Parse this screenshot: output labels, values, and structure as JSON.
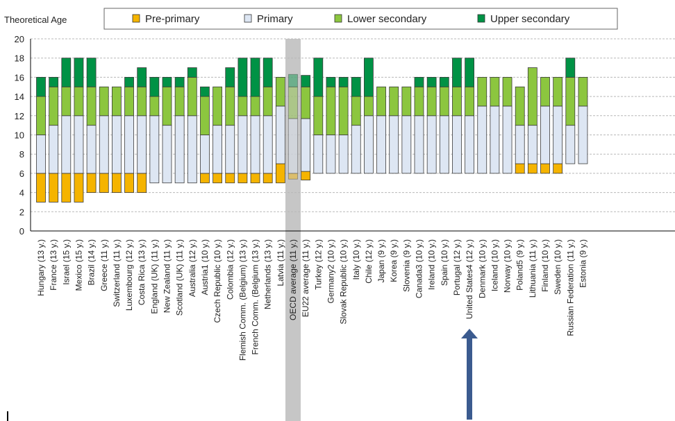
{
  "chart_data": {
    "type": "bar",
    "stacked": true,
    "ylabel": "Theoretical Age",
    "ylim": [
      0,
      20
    ],
    "yticks": [
      0,
      2,
      4,
      6,
      8,
      10,
      12,
      14,
      16,
      18,
      20
    ],
    "grid": true,
    "legend_position": "top",
    "highlight_category": "OECD average (11 y.)",
    "arrow_category": "Slovenia (9 y.)",
    "legend": [
      {
        "name": "Pre-primary",
        "color": "#f5b400"
      },
      {
        "name": "Primary",
        "color": "#dde6f3"
      },
      {
        "name": "Lower secondary",
        "color": "#8cc63f"
      },
      {
        "name": "Upper secondary",
        "color": "#009245"
      }
    ],
    "categories": [
      "Hungary (13 y.)",
      "France (13 y.)",
      "Israel (15 y.)",
      "Mexico (15 y.)",
      "Brazil (14 y.)",
      "Greece (11 y.)",
      "Switzerland (11 y.)",
      "Luxembourg (12 y.)",
      "Costa Rica (13 y.)",
      "England (UK) (11 y.)",
      "New Zealand (11 y.)",
      "Scotland (UK) (11 y.)",
      "Australia (12 y.)",
      "Austria1 (10 y.)",
      "Czech Republic (10 y.)",
      "Colombia (12 y.)",
      "Flemish Comm. (Belgium) (13 y.)",
      "French Comm. (Belgium (13 y.)",
      "Netherlands (13 y.)",
      "Latvia (11 y.)",
      "OECD average (11 y.)",
      "EU22 average (11 y.)",
      "Turkey (12 y.)",
      "Germany2 (10 y.)",
      "Slovak Republic (10 y.)",
      "Italy (10 y.)",
      "Chile (12 y.)",
      "Japan (9 y.)",
      "Korea (9 y.)",
      "Slovenia (9 y.)",
      "Canada3 (10 y.)",
      "Ireland (10 y.)",
      "Spain (10 y.)",
      "Portugal (12 y.)",
      "United States4 (12 y.)",
      "Denmark (10 y.)",
      "Iceland (10 y.)",
      "Norway (10 y.)",
      "Poland5 (9 y.)",
      "Lithuania (11 y.)",
      "Finland (10 y.)",
      "Sweden (10 y.)",
      "Russian Federation (11 y.)",
      "Estonia (9 y.)"
    ],
    "series": [
      {
        "name": "Pre-primary",
        "ranges": [
          [
            3,
            6
          ],
          [
            3,
            6
          ],
          [
            3,
            6
          ],
          [
            3,
            6
          ],
          [
            4,
            6
          ],
          [
            4,
            6
          ],
          [
            4,
            6
          ],
          [
            4,
            6
          ],
          [
            4,
            6
          ],
          null,
          null,
          null,
          null,
          [
            5,
            6
          ],
          [
            5,
            6
          ],
          [
            5,
            6
          ],
          [
            5,
            6
          ],
          [
            5,
            6
          ],
          [
            5,
            6
          ],
          [
            5,
            7
          ],
          [
            5.4,
            6
          ],
          [
            5.3,
            6.2
          ],
          null,
          null,
          null,
          null,
          null,
          null,
          null,
          null,
          null,
          null,
          null,
          null,
          null,
          null,
          null,
          null,
          [
            6,
            7
          ],
          [
            6,
            7
          ],
          [
            6,
            7
          ],
          [
            6,
            7
          ],
          null,
          null
        ]
      },
      {
        "name": "Primary",
        "ranges": [
          [
            6,
            10
          ],
          [
            6,
            11
          ],
          [
            6,
            12
          ],
          [
            6,
            12
          ],
          [
            6,
            11
          ],
          [
            6,
            12
          ],
          [
            6,
            12
          ],
          [
            6,
            12
          ],
          [
            6,
            12
          ],
          [
            5,
            12
          ],
          [
            5,
            11
          ],
          [
            5,
            12
          ],
          [
            5,
            12
          ],
          [
            6,
            10
          ],
          [
            6,
            11
          ],
          [
            6,
            11
          ],
          [
            6,
            12
          ],
          [
            6,
            12
          ],
          [
            6,
            12
          ],
          [
            7,
            13
          ],
          [
            6,
            11.7
          ],
          [
            6.2,
            11.7
          ],
          [
            6,
            10
          ],
          [
            6,
            10
          ],
          [
            6,
            10
          ],
          [
            6,
            11
          ],
          [
            6,
            12
          ],
          [
            6,
            12
          ],
          [
            6,
            12
          ],
          [
            6,
            12
          ],
          [
            6,
            12
          ],
          [
            6,
            12
          ],
          [
            6,
            12
          ],
          [
            6,
            12
          ],
          [
            6,
            12
          ],
          [
            6,
            13
          ],
          [
            6,
            13
          ],
          [
            6,
            13
          ],
          [
            7,
            11
          ],
          [
            7,
            11
          ],
          [
            7,
            13
          ],
          [
            7,
            13
          ],
          [
            7,
            11
          ],
          [
            7,
            13
          ]
        ]
      },
      {
        "name": "Lower secondary",
        "ranges": [
          [
            10,
            14
          ],
          [
            11,
            15
          ],
          [
            12,
            15
          ],
          [
            12,
            15
          ],
          [
            11,
            15
          ],
          [
            12,
            15
          ],
          [
            12,
            15
          ],
          [
            12,
            15
          ],
          [
            12,
            15
          ],
          [
            12,
            14
          ],
          [
            11,
            15
          ],
          [
            12,
            15
          ],
          [
            12,
            16
          ],
          [
            10,
            14
          ],
          [
            11,
            15
          ],
          [
            11,
            15
          ],
          [
            12,
            14
          ],
          [
            12,
            14
          ],
          [
            12,
            15
          ],
          [
            13,
            16
          ],
          [
            11.7,
            15
          ],
          [
            11.7,
            15
          ],
          [
            10,
            14
          ],
          [
            10,
            15
          ],
          [
            10,
            15
          ],
          [
            11,
            14
          ],
          [
            12,
            14
          ],
          [
            12,
            15
          ],
          [
            12,
            15
          ],
          [
            12,
            15
          ],
          [
            12,
            15
          ],
          [
            12,
            15
          ],
          [
            12,
            15
          ],
          [
            12,
            15
          ],
          [
            12,
            15
          ],
          [
            13,
            16
          ],
          [
            13,
            16
          ],
          [
            13,
            16
          ],
          [
            11,
            15
          ],
          [
            11,
            17
          ],
          [
            13,
            16
          ],
          [
            13,
            16
          ],
          [
            11,
            16
          ],
          [
            13,
            16
          ]
        ]
      },
      {
        "name": "Upper secondary",
        "ranges": [
          [
            14,
            16
          ],
          [
            15,
            16
          ],
          [
            15,
            18
          ],
          [
            15,
            18
          ],
          [
            15,
            18
          ],
          null,
          null,
          [
            15,
            16
          ],
          [
            15,
            17
          ],
          [
            14,
            16
          ],
          [
            15,
            16
          ],
          [
            15,
            16
          ],
          [
            16,
            17
          ],
          [
            14,
            15
          ],
          null,
          [
            15,
            17
          ],
          [
            14,
            18
          ],
          [
            14,
            18
          ],
          [
            15,
            18
          ],
          null,
          [
            15,
            16.3
          ],
          [
            15,
            16.2
          ],
          [
            14,
            18
          ],
          [
            15,
            16
          ],
          [
            15,
            16
          ],
          [
            14,
            16
          ],
          [
            14,
            18
          ],
          null,
          null,
          null,
          [
            15,
            16
          ],
          [
            15,
            16
          ],
          [
            15,
            16
          ],
          [
            15,
            18
          ],
          [
            15,
            18
          ],
          null,
          null,
          null,
          null,
          null,
          null,
          null,
          [
            16,
            18
          ],
          null
        ]
      }
    ]
  }
}
